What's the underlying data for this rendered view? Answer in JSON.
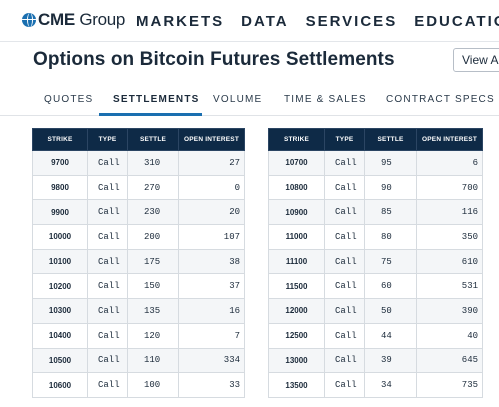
{
  "header": {
    "logo_cme": "CME",
    "logo_group": " Group",
    "nav": [
      "MARKETS",
      "DATA",
      "SERVICES",
      "EDUCATION"
    ]
  },
  "page": {
    "title": "Options on Bitcoin Futures Settlements",
    "view_button": "View An"
  },
  "tabs": [
    "QUOTES",
    "SETTLEMENTS",
    "VOLUME",
    "TIME & SALES",
    "CONTRACT SPECS"
  ],
  "active_tab": "SETTLEMENTS",
  "colors": {
    "accent": "#1a6fb0",
    "table_header": "#0e2a47"
  },
  "table": {
    "columns": [
      "STRIKE",
      "TYPE",
      "SETTLE",
      "OPEN INTEREST"
    ],
    "left_rows": [
      [
        "9700",
        "Call",
        "310",
        "27"
      ],
      [
        "9800",
        "Call",
        "270",
        "0"
      ],
      [
        "9900",
        "Call",
        "230",
        "20"
      ],
      [
        "10000",
        "Call",
        "200",
        "107"
      ],
      [
        "10100",
        "Call",
        "175",
        "38"
      ],
      [
        "10200",
        "Call",
        "150",
        "37"
      ],
      [
        "10300",
        "Call",
        "135",
        "16"
      ],
      [
        "10400",
        "Call",
        "120",
        "7"
      ],
      [
        "10500",
        "Call",
        "110",
        "334"
      ],
      [
        "10600",
        "Call",
        "100",
        "33"
      ]
    ],
    "right_rows": [
      [
        "10700",
        "Call",
        "95",
        "6"
      ],
      [
        "10800",
        "Call",
        "90",
        "700"
      ],
      [
        "10900",
        "Call",
        "85",
        "116"
      ],
      [
        "11000",
        "Call",
        "80",
        "350"
      ],
      [
        "11100",
        "Call",
        "75",
        "610"
      ],
      [
        "11500",
        "Call",
        "60",
        "531"
      ],
      [
        "12000",
        "Call",
        "50",
        "390"
      ],
      [
        "12500",
        "Call",
        "44",
        "40"
      ],
      [
        "13000",
        "Call",
        "39",
        "645"
      ],
      [
        "13500",
        "Call",
        "34",
        "735"
      ]
    ]
  }
}
